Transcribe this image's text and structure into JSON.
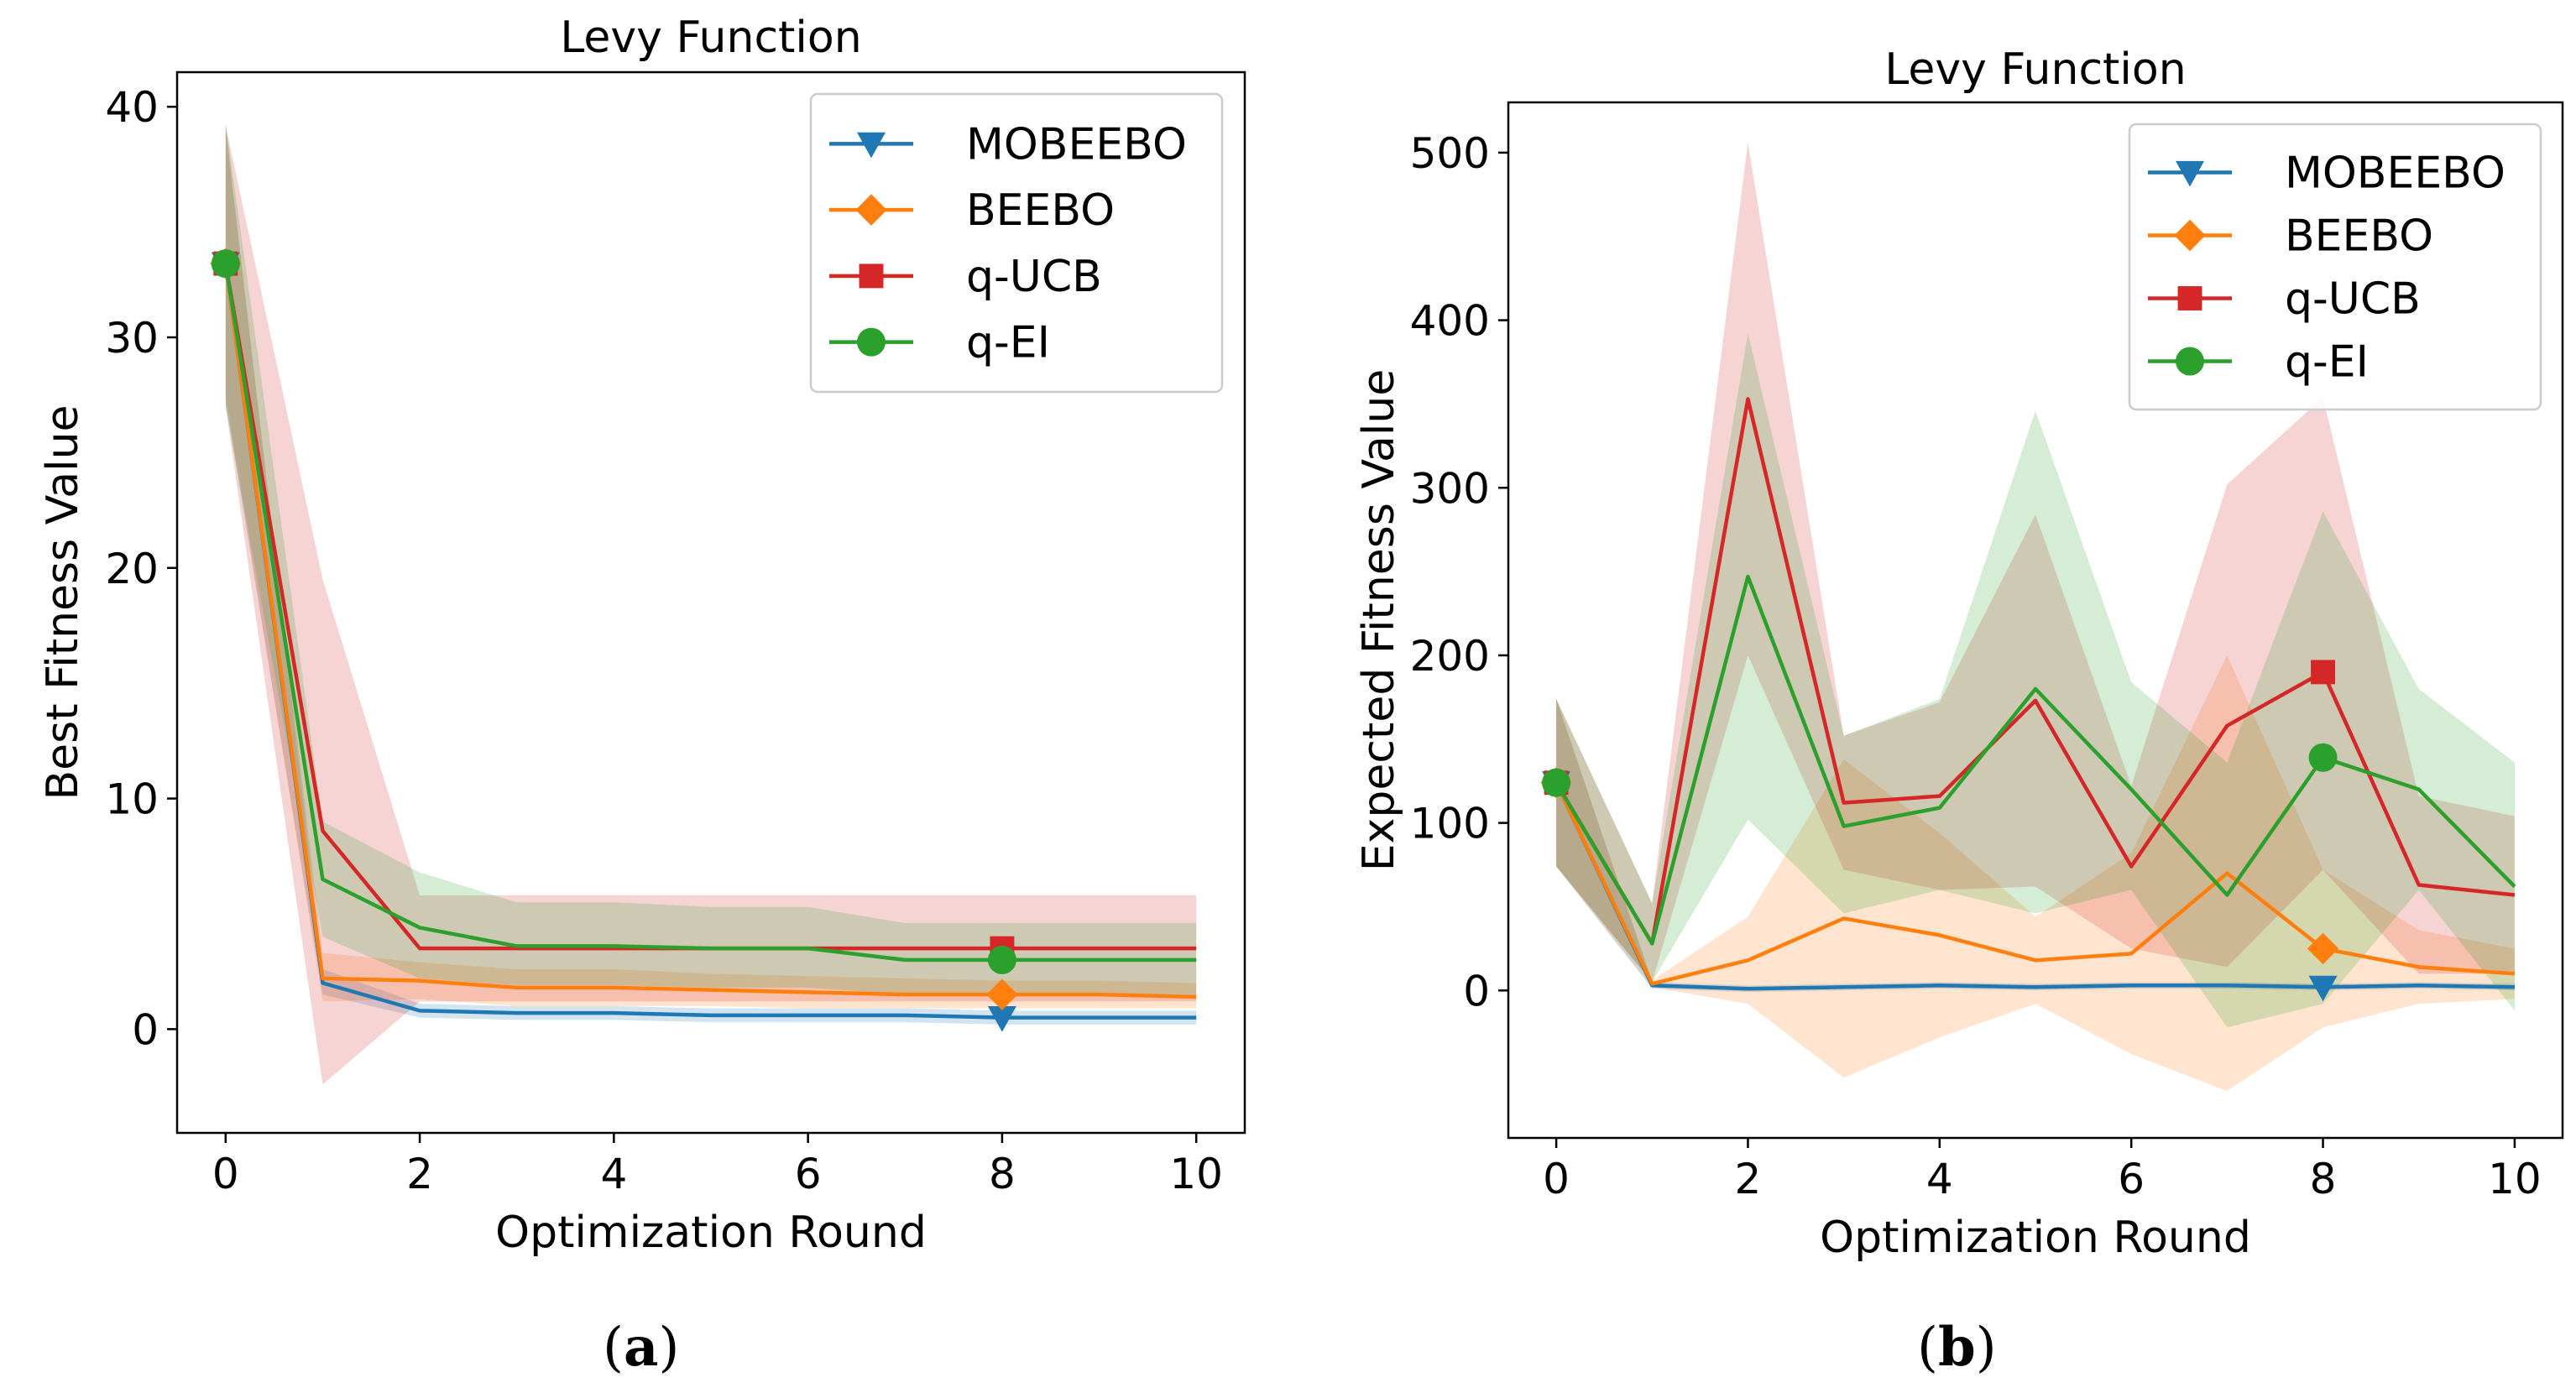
{
  "captions": [
    "a",
    "b"
  ],
  "colors": {
    "MOBEEBO": "#1f77b4",
    "BEEBO": "#ff7f0e",
    "q-UCB": "#d62728",
    "q-EI": "#2ca02c"
  },
  "chart_data": [
    {
      "type": "line",
      "title": "Levy Function",
      "xlabel": "Optimization Round",
      "ylabel": "Best Fitness Value",
      "xlim": [
        -0.5,
        10.5
      ],
      "ylim": [
        -4.5,
        41.5
      ],
      "xticks": [
        0,
        2,
        4,
        6,
        8,
        10
      ],
      "yticks": [
        0,
        10,
        20,
        30,
        40
      ],
      "grid": false,
      "legend_position": "top-right",
      "x": [
        0,
        1,
        2,
        3,
        4,
        5,
        6,
        7,
        8,
        9,
        10
      ],
      "series": [
        {
          "name": "MOBEEBO",
          "marker": "triangle-down",
          "marker_at": 8,
          "values": [
            33.2,
            2.0,
            0.8,
            0.7,
            0.7,
            0.6,
            0.6,
            0.6,
            0.5,
            0.5,
            0.5
          ],
          "lower": [
            27.2,
            1.5,
            0.5,
            0.4,
            0.4,
            0.3,
            0.3,
            0.3,
            0.2,
            0.2,
            0.2
          ],
          "upper": [
            39.2,
            2.6,
            1.1,
            1.0,
            1.0,
            0.9,
            0.9,
            0.9,
            0.8,
            0.8,
            0.8
          ]
        },
        {
          "name": "BEEBO",
          "marker": "diamond",
          "marker_at": 8,
          "values": [
            33.2,
            2.2,
            2.1,
            1.8,
            1.8,
            1.7,
            1.6,
            1.5,
            1.5,
            1.5,
            1.4
          ],
          "lower": [
            27.5,
            1.2,
            1.3,
            1.0,
            1.0,
            1.0,
            0.9,
            0.9,
            0.9,
            0.9,
            0.9
          ],
          "upper": [
            39.0,
            3.3,
            2.9,
            2.6,
            2.6,
            2.4,
            2.3,
            2.2,
            2.1,
            2.1,
            2.0
          ]
        },
        {
          "name": "q-UCB",
          "marker": "square",
          "marker_at": 8,
          "values": [
            33.2,
            8.6,
            3.5,
            3.5,
            3.5,
            3.5,
            3.5,
            3.5,
            3.5,
            3.5,
            3.5
          ],
          "lower": [
            27.0,
            -2.4,
            1.2,
            1.2,
            1.2,
            1.2,
            1.2,
            1.2,
            1.2,
            1.2,
            1.2
          ],
          "upper": [
            39.2,
            19.5,
            5.8,
            5.8,
            5.8,
            5.8,
            5.8,
            5.8,
            5.8,
            5.8,
            5.8
          ]
        },
        {
          "name": "q-EI",
          "marker": "circle",
          "marker_at": 8,
          "values": [
            33.2,
            6.5,
            4.4,
            3.6,
            3.6,
            3.5,
            3.5,
            3.0,
            3.0,
            3.0,
            3.0
          ],
          "lower": [
            27.0,
            4.0,
            2.2,
            1.9,
            1.9,
            1.8,
            1.8,
            1.5,
            1.5,
            1.5,
            1.5
          ],
          "upper": [
            39.3,
            9.0,
            6.8,
            5.5,
            5.5,
            5.3,
            5.3,
            4.6,
            4.6,
            4.6,
            4.6
          ]
        }
      ]
    },
    {
      "type": "line",
      "title": "Levy Function",
      "xlabel": "Optimization Round",
      "ylabel": "Expected Fitness Value",
      "xlim": [
        -0.5,
        10.5
      ],
      "ylim": [
        -88,
        530
      ],
      "xticks": [
        0,
        2,
        4,
        6,
        8,
        10
      ],
      "yticks": [
        0,
        100,
        200,
        300,
        400,
        500
      ],
      "grid": false,
      "legend_position": "top-right",
      "x": [
        0,
        1,
        2,
        3,
        4,
        5,
        6,
        7,
        8,
        9,
        10
      ],
      "series": [
        {
          "name": "MOBEEBO",
          "marker": "triangle-down",
          "marker_at": 8,
          "values": [
            124,
            3,
            1,
            2,
            3,
            2,
            3,
            3,
            2,
            3,
            2
          ],
          "lower": [
            74,
            1,
            -1,
            0,
            1,
            0,
            1,
            1,
            0,
            1,
            0
          ],
          "upper": [
            174,
            5,
            3,
            4,
            5,
            4,
            5,
            5,
            4,
            5,
            4
          ]
        },
        {
          "name": "BEEBO",
          "marker": "diamond",
          "marker_at": 8,
          "values": [
            124,
            4,
            18,
            43,
            33,
            18,
            22,
            70,
            25,
            14,
            10
          ],
          "lower": [
            74,
            2,
            -8,
            -52,
            -28,
            -8,
            -38,
            -60,
            -22,
            -8,
            -5
          ],
          "upper": [
            174,
            6,
            44,
            138,
            94,
            44,
            82,
            200,
            72,
            36,
            25
          ]
        },
        {
          "name": "q-UCB",
          "marker": "square",
          "marker_at": 8,
          "values": [
            124,
            28,
            353,
            112,
            116,
            173,
            74,
            158,
            190,
            63,
            57
          ],
          "lower": [
            74,
            5,
            200,
            72,
            60,
            62,
            25,
            14,
            72,
            10,
            10
          ],
          "upper": [
            174,
            52,
            506,
            152,
            172,
            284,
            122,
            302,
            354,
            116,
            104
          ]
        },
        {
          "name": "q-EI",
          "marker": "circle",
          "marker_at": 8,
          "values": [
            124,
            28,
            247,
            98,
            109,
            180,
            120,
            57,
            139,
            120,
            62
          ],
          "lower": [
            74,
            5,
            102,
            46,
            60,
            46,
            60,
            -22,
            -8,
            60,
            -12
          ],
          "upper": [
            174,
            52,
            392,
            152,
            174,
            346,
            184,
            136,
            286,
            180,
            136
          ]
        }
      ]
    }
  ]
}
